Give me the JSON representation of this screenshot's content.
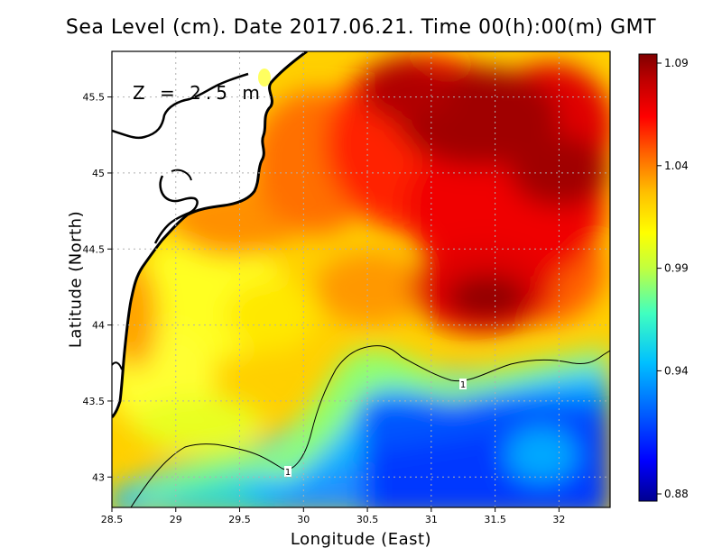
{
  "title": "Sea Level (cm). Date 2017.06.21. Time 00(h):00(m) GMT",
  "depth_label": "Z = 2.5 m",
  "contour_label": "1",
  "map": {
    "xlabel": "Longitude (East)",
    "ylabel": "Latitude (North)",
    "lon_range": [
      28.5,
      32.4
    ],
    "lat_range": [
      42.8,
      45.8
    ],
    "x_ticks": [
      "28.5",
      "29",
      "29.5",
      "30",
      "30.5",
      "31",
      "31.5",
      "32"
    ],
    "x_tick_values": [
      28.5,
      29,
      29.5,
      30,
      30.5,
      31,
      31.5,
      32
    ],
    "y_ticks": [
      "43",
      "43.5",
      "44",
      "44.5",
      "45",
      "45.5"
    ],
    "y_tick_values": [
      43,
      43.5,
      44,
      44.5,
      45,
      45.5
    ],
    "grid": true
  },
  "colorbar": {
    "min": 0.88,
    "max": 1.09,
    "ticks": [
      "0.88",
      "0.94",
      "0.99",
      "1.04",
      "1.09"
    ],
    "tick_values": [
      0.88,
      0.94,
      0.99,
      1.04,
      1.09
    ],
    "colors": [
      "#000090",
      "#0000ff",
      "#0060ff",
      "#00c0ff",
      "#40ffc0",
      "#c0ff40",
      "#ffff00",
      "#ffc000",
      "#ff6000",
      "#ff0000",
      "#c00000",
      "#800000"
    ]
  }
}
